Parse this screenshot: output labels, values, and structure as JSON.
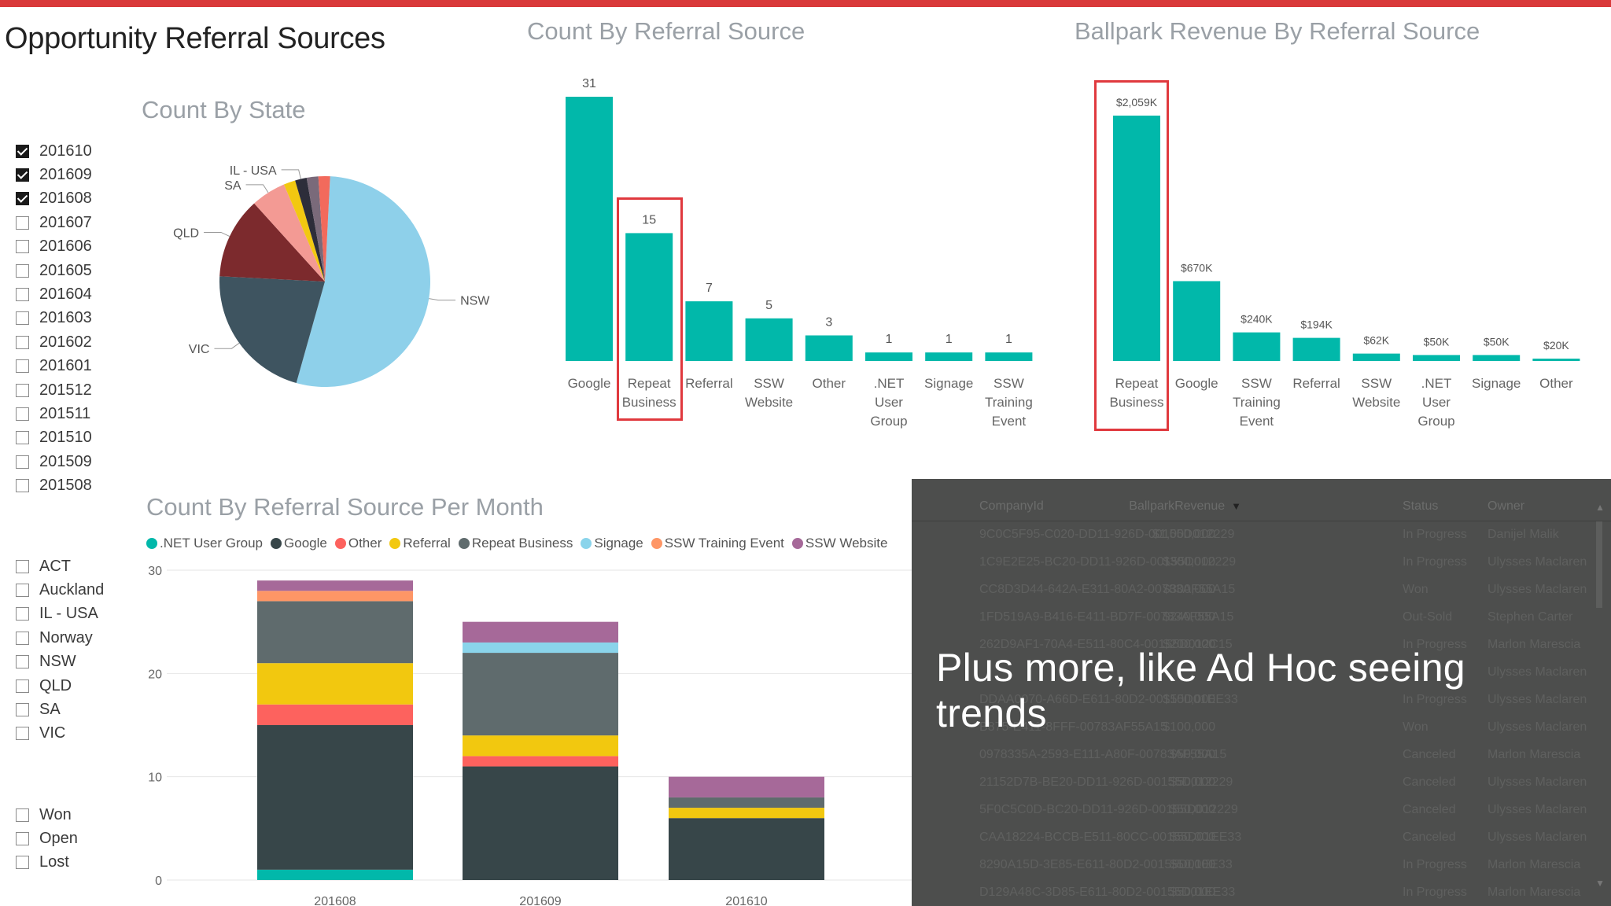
{
  "page_title": "Opportunity Referral Sources",
  "month_slicer": [
    {
      "label": "201610",
      "checked": true
    },
    {
      "label": "201609",
      "checked": true
    },
    {
      "label": "201608",
      "checked": true
    },
    {
      "label": "201607",
      "checked": false
    },
    {
      "label": "201606",
      "checked": false
    },
    {
      "label": "201605",
      "checked": false
    },
    {
      "label": "201604",
      "checked": false
    },
    {
      "label": "201603",
      "checked": false
    },
    {
      "label": "201602",
      "checked": false
    },
    {
      "label": "201601",
      "checked": false
    },
    {
      "label": "201512",
      "checked": false
    },
    {
      "label": "201511",
      "checked": false
    },
    {
      "label": "201510",
      "checked": false
    },
    {
      "label": "201509",
      "checked": false
    },
    {
      "label": "201508",
      "checked": false
    }
  ],
  "state_slicer": [
    {
      "label": "ACT",
      "checked": false
    },
    {
      "label": "Auckland",
      "checked": false
    },
    {
      "label": "IL - USA",
      "checked": false
    },
    {
      "label": "Norway",
      "checked": false
    },
    {
      "label": "NSW",
      "checked": false
    },
    {
      "label": "QLD",
      "checked": false
    },
    {
      "label": "SA",
      "checked": false
    },
    {
      "label": "VIC",
      "checked": false
    }
  ],
  "status_slicer": [
    {
      "label": "Won",
      "checked": false
    },
    {
      "label": "Open",
      "checked": false
    },
    {
      "label": "Lost",
      "checked": false
    }
  ],
  "chart_data": [
    {
      "type": "pie",
      "title": "Count By State",
      "labels": [
        "NSW",
        "VIC",
        "QLD",
        "SA",
        "",
        "IL - USA",
        "",
        ""
      ],
      "values": [
        30,
        12,
        7,
        3,
        1,
        1,
        1,
        1
      ],
      "colors": [
        "#8ed0ea",
        "#3e5460",
        "#7c2a2d",
        "#f39a94",
        "#f2c811",
        "#2d2d3a",
        "#7a6a7a",
        "#f26a5c"
      ],
      "label_order_note": "callouts for NSW, VIC, QLD, SA, IL - USA"
    },
    {
      "type": "bar",
      "title": "Count By Referral Source",
      "categories": [
        "Google",
        "Repeat Business",
        "Referral",
        "SSW Website",
        "Other",
        ".NET User Group",
        "Signage",
        "SSW Training Event"
      ],
      "values": [
        31,
        15,
        7,
        5,
        3,
        1,
        1,
        1
      ],
      "data_labels": [
        "31",
        "15",
        "7",
        "5",
        "3",
        "1",
        "1",
        "1"
      ],
      "ylim": [
        0,
        31
      ],
      "highlighted_category": "Repeat Business",
      "color": "#01b8aa"
    },
    {
      "type": "bar",
      "title": "Ballpark Revenue By Referral Source",
      "categories": [
        "Repeat Business",
        "Google",
        "SSW Training Event",
        "Referral",
        "SSW Website",
        ".NET User Group",
        "Signage",
        "Other"
      ],
      "values": [
        2059,
        670,
        240,
        194,
        62,
        50,
        50,
        20
      ],
      "data_labels": [
        "$2,059K",
        "$670K",
        "$240K",
        "$194K",
        "$62K",
        "$50K",
        "$50K",
        "$20K"
      ],
      "value_units": "thousands of dollars",
      "ylim": [
        0,
        2059
      ],
      "highlighted_category": "Repeat Business",
      "color": "#01b8aa"
    },
    {
      "type": "bar",
      "stacked": true,
      "title": "Count By Referral Source Per Month",
      "categories": [
        "201608",
        "201609",
        "201610"
      ],
      "ylim": [
        0,
        30
      ],
      "yticks": [
        0,
        10,
        20,
        30
      ],
      "series": [
        {
          "name": ".NET User Group",
          "color": "#01b8aa",
          "values": [
            1,
            0,
            0
          ]
        },
        {
          "name": "Google",
          "color": "#374649",
          "values": [
            14,
            11,
            6
          ]
        },
        {
          "name": "Other",
          "color": "#fd625e",
          "values": [
            2,
            1,
            0
          ]
        },
        {
          "name": "Referral",
          "color": "#f2c80f",
          "values": [
            4,
            2,
            1
          ]
        },
        {
          "name": "Repeat Business",
          "color": "#5f6b6d",
          "values": [
            6,
            8,
            1
          ]
        },
        {
          "name": "Signage",
          "color": "#8ad4eb",
          "values": [
            0,
            1,
            0
          ]
        },
        {
          "name": "SSW Training Event",
          "color": "#fe9666",
          "values": [
            1,
            0,
            0
          ]
        },
        {
          "name": "SSW Website",
          "color": "#a66999",
          "values": [
            1,
            2,
            2
          ]
        }
      ]
    }
  ],
  "table": {
    "columns": [
      "CompanyId",
      "BallparkRevenue",
      "Status",
      "Owner"
    ],
    "rows": [
      [
        "9C0C5F95-C020-DD11-926D-00155D012229",
        "$1,000,000",
        "In Progress",
        "Danijel Malik"
      ],
      [
        "1C9E2E25-BC20-DD11-926D-00155D012229",
        "$300,000",
        "In Progress",
        "Ulysses Maclaren"
      ],
      [
        "CC8D3D44-642A-E311-80A2-00783AF55A15",
        "$300,000",
        "Won",
        "Ulysses Maclaren"
      ],
      [
        "1FD519A9-B416-E411-BD7F-00783AF55A15",
        "$240,000",
        "Out-Sold",
        "Stephen Carter"
      ],
      [
        "262D9AF1-70A4-E511-80C4-00155D012C15",
        "$200,000",
        "In Progress",
        "Marlon Marescia"
      ],
      [
        "",
        "",
        "",
        "Ulysses Maclaren"
      ],
      [
        "DDAA0070-A66D-E611-80D2-00155D01EE33",
        "$100,000",
        "In Progress",
        "Ulysses Maclaren"
      ],
      [
        "B875-E411-8FFF-00783AF55A15",
        "$100,000",
        "Won",
        "Ulysses Maclaren"
      ],
      [
        "0978335A-2593-E111-A80F-00783AF55A15",
        "$50,000",
        "Canceled",
        "Marlon Marescia"
      ],
      [
        "21152D7B-BE20-DD11-926D-00155D012229",
        "$50,000",
        "Canceled",
        "Ulysses Maclaren"
      ],
      [
        "5F0C5C0D-BC20-DD11-926D-00155D012229",
        "$50,000",
        "Canceled",
        "Ulysses Maclaren"
      ],
      [
        "CAA18224-BCCB-E511-80CC-00155D01EE33",
        "$50,000",
        "Canceled",
        "Ulysses Maclaren"
      ],
      [
        "8290A15D-3E85-E611-80D2-00155D01EE33",
        "$50,000",
        "In Progress",
        "Marlon Marescia"
      ],
      [
        "D129A48C-3D85-E611-80D2-00155D01EE33",
        "$50,000",
        "In Progress",
        "Marlon Marescia"
      ]
    ]
  },
  "overlay_caption": "Plus more, like Ad Hoc seeing trends"
}
